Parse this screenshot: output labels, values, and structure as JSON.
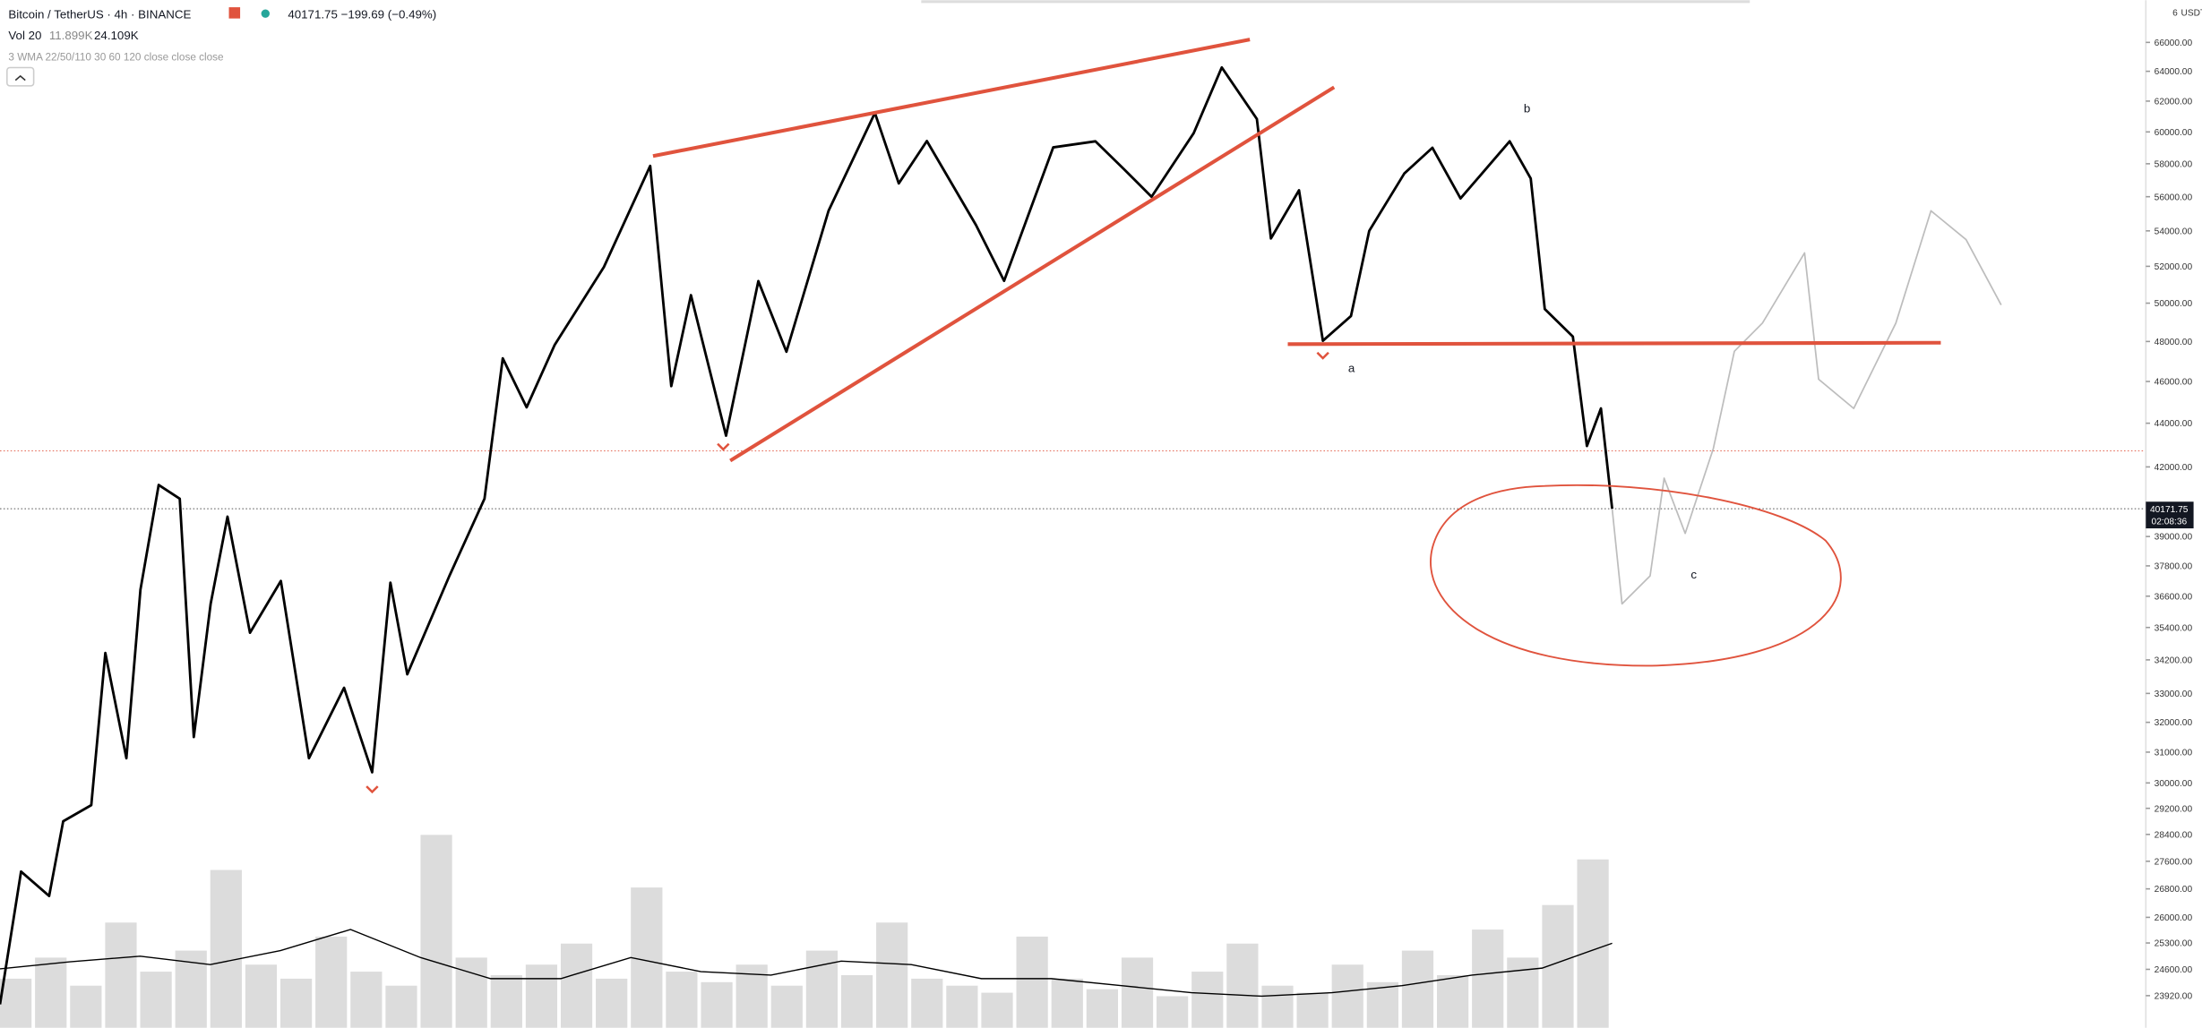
{
  "header": {
    "symbol": "Bitcoin / TetherUS · 4h · BINANCE",
    "quote": "40171.75 −199.69 (−0.49%)",
    "volume_label": "Vol 20",
    "volume_value": "11.899K",
    "volume_ma_value": "24.109K",
    "indicator": "3 WMA 22/50/110 30 60 120 close close close",
    "currency_top": "6",
    "currency": "USDT"
  },
  "annotations": {
    "a": "a",
    "b": "b",
    "c": "c"
  },
  "chart_data": {
    "type": "line",
    "log_scale": true,
    "ylim": [
      23116,
      69030
    ],
    "xlim": [
      0,
      1528
    ],
    "yticks": [
      {
        "value": 66000,
        "label": "66000.00"
      },
      {
        "value": 64000,
        "label": "64000.00"
      },
      {
        "value": 62000,
        "label": "62000.00"
      },
      {
        "value": 60000,
        "label": "60000.00"
      },
      {
        "value": 58000,
        "label": "58000.00"
      },
      {
        "value": 56000,
        "label": "56000.00"
      },
      {
        "value": 54000,
        "label": "54000.00"
      },
      {
        "value": 52000,
        "label": "52000.00"
      },
      {
        "value": 50000,
        "label": "50000.00"
      },
      {
        "value": 48000,
        "label": "48000.00"
      },
      {
        "value": 46000,
        "label": "46000.00"
      },
      {
        "value": 44000,
        "label": "44000.00"
      },
      {
        "value": 42000,
        "label": "42000.00"
      },
      {
        "value": 39000,
        "label": "39000.00"
      },
      {
        "value": 37800,
        "label": "37800.00"
      },
      {
        "value": 36600,
        "label": "36600.00"
      },
      {
        "value": 35400,
        "label": "35400.00"
      },
      {
        "value": 34200,
        "label": "34200.00"
      },
      {
        "value": 33000,
        "label": "33000.00"
      },
      {
        "value": 32000,
        "label": "32000.00"
      },
      {
        "value": 31000,
        "label": "31000.00"
      },
      {
        "value": 30000,
        "label": "30000.00"
      },
      {
        "value": 29200,
        "label": "29200.00"
      },
      {
        "value": 28400,
        "label": "28400.00"
      },
      {
        "value": 27600,
        "label": "27600.00"
      },
      {
        "value": 26800,
        "label": "26800.00"
      },
      {
        "value": 26000,
        "label": "26000.00"
      },
      {
        "value": 25300,
        "label": "25300.00"
      },
      {
        "value": 24600,
        "label": "24600.00"
      },
      {
        "value": 23920,
        "label": "23920.00"
      }
    ],
    "last_price": 40171.75,
    "countdown": "02:08:36",
    "alert_level": 42720,
    "series": [
      {
        "color": "#000000",
        "x": [
          0,
          15,
          35,
          45,
          65,
          75,
          90,
          100,
          113,
          128,
          138,
          150,
          162,
          178,
          200,
          220,
          245,
          265,
          278,
          290,
          320,
          345,
          358,
          375,
          395,
          430,
          463,
          478,
          492,
          517,
          540,
          560,
          590,
          623,
          640,
          660,
          695,
          715,
          750,
          780,
          800,
          820,
          850,
          870,
          895,
          905,
          925,
          942,
          962,
          975,
          1000,
          1020,
          1040,
          1075,
          1090,
          1100,
          1120,
          1130,
          1140,
          1148
        ],
        "values": [
          23700,
          27300,
          26600,
          28800,
          29300,
          34450,
          30800,
          36850,
          41200,
          40600,
          31500,
          36300,
          39830,
          35200,
          37200,
          30800,
          33200,
          30340,
          37130,
          33680,
          37400,
          40600,
          47150,
          44750,
          47830,
          51960,
          57870,
          45770,
          50430,
          43420,
          51190,
          47480,
          55170,
          61220,
          56800,
          59420,
          54330,
          51200,
          59020,
          59400,
          57700,
          56000,
          59920,
          64260,
          60830,
          53570,
          56380,
          48040,
          49320,
          54000,
          57400,
          59000,
          55900,
          59400,
          57100,
          49690,
          48250,
          42940,
          44700,
          40170
        ]
      },
      {
        "color": "#bdbdbd",
        "x": [
          1148,
          1155,
          1175,
          1185,
          1200,
          1220,
          1235,
          1255,
          1285,
          1295,
          1320,
          1350,
          1375,
          1400,
          1425
        ],
        "values": [
          40170,
          36300,
          37400,
          41500,
          39130,
          42820,
          47500,
          48950,
          52750,
          46110,
          44700,
          48950,
          55170,
          53500,
          49900
        ]
      }
    ],
    "volume": {
      "ylim": [
        0,
        293
      ],
      "color": "#dcdcdc",
      "ma_color": "#000000",
      "values": [
        14,
        20,
        12,
        30,
        16,
        22,
        45,
        18,
        14,
        26,
        16,
        12,
        55,
        20,
        15,
        18,
        24,
        14,
        40,
        16,
        13,
        18,
        12,
        22,
        15,
        30,
        14,
        12,
        10,
        26,
        14,
        11,
        20,
        9,
        16,
        24,
        12,
        10,
        18,
        13,
        22,
        15,
        28,
        20,
        35,
        48
      ],
      "ma": [
        16.8,
        18.8,
        20.4,
        18,
        22,
        28,
        20,
        14,
        14,
        20,
        16,
        15,
        19,
        18,
        14,
        14,
        12,
        10,
        9,
        10,
        12,
        15,
        17,
        24.1
      ]
    }
  }
}
